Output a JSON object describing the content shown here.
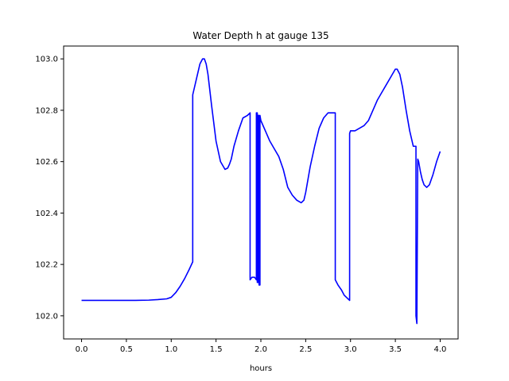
{
  "chart_data": {
    "type": "line",
    "title": "Water Depth h at gauge 135",
    "xlabel": "hours",
    "ylabel": "",
    "xlim": [
      -0.2,
      4.2
    ],
    "ylim": [
      101.91,
      103.05
    ],
    "grid": false,
    "x_ticks": [
      0.0,
      0.5,
      1.0,
      1.5,
      2.0,
      2.5,
      3.0,
      3.5,
      4.0
    ],
    "x_tick_labels": [
      "0.0",
      "0.5",
      "1.0",
      "1.5",
      "2.0",
      "2.5",
      "3.0",
      "3.5",
      "4.0"
    ],
    "y_ticks": [
      102.0,
      102.2,
      102.4,
      102.6,
      102.8,
      103.0
    ],
    "y_tick_labels": [
      "102.0",
      "102.2",
      "102.4",
      "102.6",
      "102.8",
      "103.0"
    ],
    "series": [
      {
        "color": "#0000ff",
        "x": [
          0.0,
          0.2,
          0.4,
          0.6,
          0.75,
          0.85,
          0.95,
          1.0,
          1.05,
          1.1,
          1.15,
          1.2,
          1.24,
          1.24,
          1.28,
          1.32,
          1.35,
          1.37,
          1.39,
          1.41,
          1.45,
          1.5,
          1.55,
          1.6,
          1.63,
          1.65,
          1.67,
          1.7,
          1.75,
          1.8,
          1.85,
          1.88,
          1.88,
          1.9,
          1.93,
          1.95,
          1.95,
          1.96,
          1.96,
          1.97,
          1.97,
          1.98,
          1.98,
          1.99,
          1.99,
          2.0,
          2.05,
          2.1,
          2.15,
          2.2,
          2.25,
          2.3,
          2.35,
          2.4,
          2.45,
          2.48,
          2.5,
          2.55,
          2.6,
          2.65,
          2.7,
          2.75,
          2.8,
          2.83,
          2.83,
          2.86,
          2.9,
          2.93,
          2.96,
          2.99,
          2.99,
          3.0,
          3.05,
          3.1,
          3.15,
          3.2,
          3.25,
          3.3,
          3.35,
          3.4,
          3.45,
          3.5,
          3.52,
          3.55,
          3.58,
          3.62,
          3.66,
          3.7,
          3.73,
          3.73,
          3.74,
          3.75,
          3.76,
          3.78,
          3.8,
          3.82,
          3.85,
          3.88,
          3.92,
          3.96,
          4.0
        ],
        "y": [
          102.06,
          102.06,
          102.06,
          102.06,
          102.061,
          102.063,
          102.066,
          102.072,
          102.09,
          102.115,
          102.145,
          102.18,
          102.21,
          102.86,
          102.92,
          102.98,
          103.0,
          103.0,
          102.98,
          102.94,
          102.82,
          102.68,
          102.6,
          102.57,
          102.575,
          102.59,
          102.61,
          102.66,
          102.72,
          102.77,
          102.78,
          102.79,
          102.14,
          102.15,
          102.15,
          102.14,
          102.79,
          102.79,
          102.13,
          102.13,
          102.78,
          102.78,
          102.12,
          102.12,
          102.78,
          102.76,
          102.72,
          102.68,
          102.65,
          102.62,
          102.57,
          102.5,
          102.47,
          102.45,
          102.44,
          102.45,
          102.48,
          102.58,
          102.66,
          102.73,
          102.77,
          102.79,
          102.79,
          102.79,
          102.14,
          102.12,
          102.1,
          102.08,
          102.07,
          102.06,
          102.71,
          102.72,
          102.72,
          102.73,
          102.74,
          102.76,
          102.8,
          102.84,
          102.87,
          102.9,
          102.93,
          102.96,
          102.96,
          102.94,
          102.89,
          102.8,
          102.72,
          102.66,
          102.66,
          102.0,
          101.97,
          102.61,
          102.6,
          102.56,
          102.53,
          102.51,
          102.5,
          102.51,
          102.55,
          102.6,
          102.64
        ]
      }
    ]
  }
}
